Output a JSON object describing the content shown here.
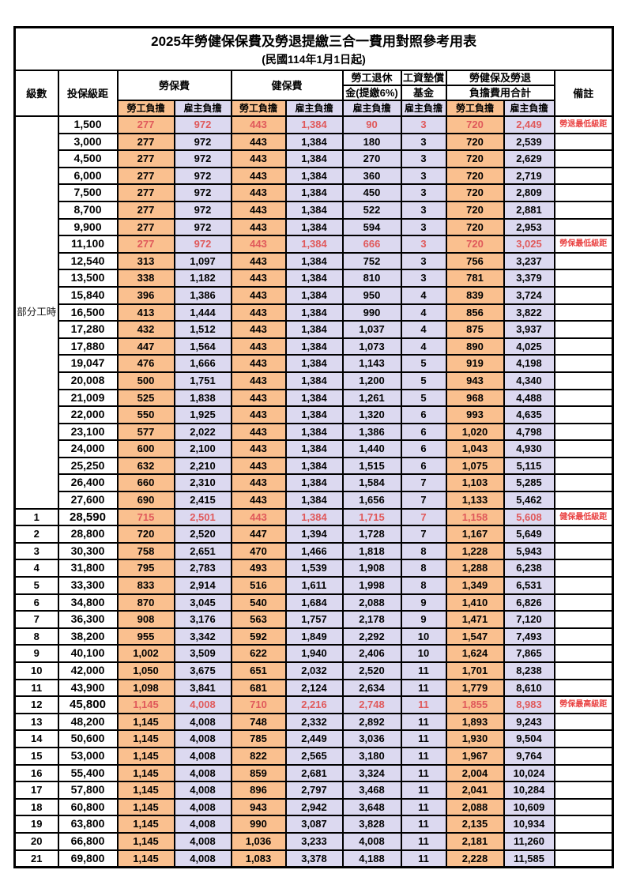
{
  "title": "2025年勞健保保費及勞退提繳三合一費用對照參考用表",
  "subtitle": "(民國114年1月1日起)",
  "colors": {
    "worker_bg": "#fac08f",
    "employer_bg": "#dcd9f0",
    "highlight_red": "#e0595b",
    "remark_red": "#ea4444",
    "border": "#000000"
  },
  "header": {
    "level": "級數",
    "bracket": "投保級距",
    "labor_insurance": "勞保費",
    "health_insurance": "健保費",
    "pension_line1": "勞工退休",
    "pension_line2": "金(提繳6%)",
    "wage_fund_line1": "工資墊償",
    "wage_fund_line2": "基金",
    "total_line1": "勞健保及勞退",
    "total_line2": "負擔費用合計",
    "remark": "備註",
    "worker_burden": "勞工負擔",
    "employer_burden": "雇主負擔"
  },
  "part_time_label": "部分工時",
  "part_time_rowspan": 23,
  "rows": [
    {
      "level": "",
      "bracket": "1,500",
      "values": [
        "277",
        "972",
        "443",
        "1,384",
        "90",
        "3",
        "720",
        "2,449"
      ],
      "remark": "勞退最低級距",
      "red": true,
      "bold": false
    },
    {
      "level": "",
      "bracket": "3,000",
      "values": [
        "277",
        "972",
        "443",
        "1,384",
        "180",
        "3",
        "720",
        "2,539"
      ],
      "remark": "",
      "red": false,
      "bold": false
    },
    {
      "level": "",
      "bracket": "4,500",
      "values": [
        "277",
        "972",
        "443",
        "1,384",
        "270",
        "3",
        "720",
        "2,629"
      ],
      "remark": "",
      "red": false,
      "bold": false
    },
    {
      "level": "",
      "bracket": "6,000",
      "values": [
        "277",
        "972",
        "443",
        "1,384",
        "360",
        "3",
        "720",
        "2,719"
      ],
      "remark": "",
      "red": false,
      "bold": false
    },
    {
      "level": "",
      "bracket": "7,500",
      "values": [
        "277",
        "972",
        "443",
        "1,384",
        "450",
        "3",
        "720",
        "2,809"
      ],
      "remark": "",
      "red": false,
      "bold": false
    },
    {
      "level": "",
      "bracket": "8,700",
      "values": [
        "277",
        "972",
        "443",
        "1,384",
        "522",
        "3",
        "720",
        "2,881"
      ],
      "remark": "",
      "red": false,
      "bold": false
    },
    {
      "level": "",
      "bracket": "9,900",
      "values": [
        "277",
        "972",
        "443",
        "1,384",
        "594",
        "3",
        "720",
        "2,953"
      ],
      "remark": "",
      "red": false,
      "bold": false
    },
    {
      "level": "",
      "bracket": "11,100",
      "values": [
        "277",
        "972",
        "443",
        "1,384",
        "666",
        "3",
        "720",
        "3,025"
      ],
      "remark": "勞保最低級距",
      "red": true,
      "bold": false
    },
    {
      "level": "",
      "bracket": "12,540",
      "values": [
        "313",
        "1,097",
        "443",
        "1,384",
        "752",
        "3",
        "756",
        "3,237"
      ],
      "remark": "",
      "red": false,
      "bold": false
    },
    {
      "level": "",
      "bracket": "13,500",
      "values": [
        "338",
        "1,182",
        "443",
        "1,384",
        "810",
        "3",
        "781",
        "3,379"
      ],
      "remark": "",
      "red": false,
      "bold": false
    },
    {
      "level": "",
      "bracket": "15,840",
      "values": [
        "396",
        "1,386",
        "443",
        "1,384",
        "950",
        "4",
        "839",
        "3,724"
      ],
      "remark": "",
      "red": false,
      "bold": false
    },
    {
      "level": "",
      "bracket": "16,500",
      "values": [
        "413",
        "1,444",
        "443",
        "1,384",
        "990",
        "4",
        "856",
        "3,822"
      ],
      "remark": "",
      "red": false,
      "bold": false
    },
    {
      "level": "",
      "bracket": "17,280",
      "values": [
        "432",
        "1,512",
        "443",
        "1,384",
        "1,037",
        "4",
        "875",
        "3,937"
      ],
      "remark": "",
      "red": false,
      "bold": false
    },
    {
      "level": "",
      "bracket": "17,880",
      "values": [
        "447",
        "1,564",
        "443",
        "1,384",
        "1,073",
        "4",
        "890",
        "4,025"
      ],
      "remark": "",
      "red": false,
      "bold": false
    },
    {
      "level": "",
      "bracket": "19,047",
      "values": [
        "476",
        "1,666",
        "443",
        "1,384",
        "1,143",
        "5",
        "919",
        "4,198"
      ],
      "remark": "",
      "red": false,
      "bold": false
    },
    {
      "level": "",
      "bracket": "20,008",
      "values": [
        "500",
        "1,751",
        "443",
        "1,384",
        "1,200",
        "5",
        "943",
        "4,340"
      ],
      "remark": "",
      "red": false,
      "bold": false
    },
    {
      "level": "",
      "bracket": "21,009",
      "values": [
        "525",
        "1,838",
        "443",
        "1,384",
        "1,261",
        "5",
        "968",
        "4,488"
      ],
      "remark": "",
      "red": false,
      "bold": false
    },
    {
      "level": "",
      "bracket": "22,000",
      "values": [
        "550",
        "1,925",
        "443",
        "1,384",
        "1,320",
        "6",
        "993",
        "4,635"
      ],
      "remark": "",
      "red": false,
      "bold": false
    },
    {
      "level": "",
      "bracket": "23,100",
      "values": [
        "577",
        "2,022",
        "443",
        "1,384",
        "1,386",
        "6",
        "1,020",
        "4,798"
      ],
      "remark": "",
      "red": false,
      "bold": false
    },
    {
      "level": "",
      "bracket": "24,000",
      "values": [
        "600",
        "2,100",
        "443",
        "1,384",
        "1,440",
        "6",
        "1,043",
        "4,930"
      ],
      "remark": "",
      "red": false,
      "bold": false
    },
    {
      "level": "",
      "bracket": "25,250",
      "values": [
        "632",
        "2,210",
        "443",
        "1,384",
        "1,515",
        "6",
        "1,075",
        "5,115"
      ],
      "remark": "",
      "red": false,
      "bold": false
    },
    {
      "level": "",
      "bracket": "26,400",
      "values": [
        "660",
        "2,310",
        "443",
        "1,384",
        "1,584",
        "7",
        "1,103",
        "5,285"
      ],
      "remark": "",
      "red": false,
      "bold": false
    },
    {
      "level": "",
      "bracket": "27,600",
      "values": [
        "690",
        "2,415",
        "443",
        "1,384",
        "1,656",
        "7",
        "1,133",
        "5,462"
      ],
      "remark": "",
      "red": false,
      "bold": false
    },
    {
      "level": "1",
      "bracket": "28,590",
      "values": [
        "715",
        "2,501",
        "443",
        "1,384",
        "1,715",
        "7",
        "1,158",
        "5,608"
      ],
      "remark": "健保最低級距",
      "red": true,
      "bold": true
    },
    {
      "level": "2",
      "bracket": "28,800",
      "values": [
        "720",
        "2,520",
        "447",
        "1,394",
        "1,728",
        "7",
        "1,167",
        "5,649"
      ],
      "remark": "",
      "red": false,
      "bold": false
    },
    {
      "level": "3",
      "bracket": "30,300",
      "values": [
        "758",
        "2,651",
        "470",
        "1,466",
        "1,818",
        "8",
        "1,228",
        "5,943"
      ],
      "remark": "",
      "red": false,
      "bold": false
    },
    {
      "level": "4",
      "bracket": "31,800",
      "values": [
        "795",
        "2,783",
        "493",
        "1,539",
        "1,908",
        "8",
        "1,288",
        "6,238"
      ],
      "remark": "",
      "red": false,
      "bold": false
    },
    {
      "level": "5",
      "bracket": "33,300",
      "values": [
        "833",
        "2,914",
        "516",
        "1,611",
        "1,998",
        "8",
        "1,349",
        "6,531"
      ],
      "remark": "",
      "red": false,
      "bold": false
    },
    {
      "level": "6",
      "bracket": "34,800",
      "values": [
        "870",
        "3,045",
        "540",
        "1,684",
        "2,088",
        "9",
        "1,410",
        "6,826"
      ],
      "remark": "",
      "red": false,
      "bold": false
    },
    {
      "level": "7",
      "bracket": "36,300",
      "values": [
        "908",
        "3,176",
        "563",
        "1,757",
        "2,178",
        "9",
        "1,471",
        "7,120"
      ],
      "remark": "",
      "red": false,
      "bold": false
    },
    {
      "level": "8",
      "bracket": "38,200",
      "values": [
        "955",
        "3,342",
        "592",
        "1,849",
        "2,292",
        "10",
        "1,547",
        "7,493"
      ],
      "remark": "",
      "red": false,
      "bold": false
    },
    {
      "level": "9",
      "bracket": "40,100",
      "values": [
        "1,002",
        "3,509",
        "622",
        "1,940",
        "2,406",
        "10",
        "1,624",
        "7,865"
      ],
      "remark": "",
      "red": false,
      "bold": false
    },
    {
      "level": "10",
      "bracket": "42,000",
      "values": [
        "1,050",
        "3,675",
        "651",
        "2,032",
        "2,520",
        "11",
        "1,701",
        "8,238"
      ],
      "remark": "",
      "red": false,
      "bold": false
    },
    {
      "level": "11",
      "bracket": "43,900",
      "values": [
        "1,098",
        "3,841",
        "681",
        "2,124",
        "2,634",
        "11",
        "1,779",
        "8,610"
      ],
      "remark": "",
      "red": false,
      "bold": false
    },
    {
      "level": "12",
      "bracket": "45,800",
      "values": [
        "1,145",
        "4,008",
        "710",
        "2,216",
        "2,748",
        "11",
        "1,855",
        "8,983"
      ],
      "remark": "勞保最高級距",
      "red": true,
      "bold": true
    },
    {
      "level": "13",
      "bracket": "48,200",
      "values": [
        "1,145",
        "4,008",
        "748",
        "2,332",
        "2,892",
        "11",
        "1,893",
        "9,243"
      ],
      "remark": "",
      "red": false,
      "bold": false
    },
    {
      "level": "14",
      "bracket": "50,600",
      "values": [
        "1,145",
        "4,008",
        "785",
        "2,449",
        "3,036",
        "11",
        "1,930",
        "9,504"
      ],
      "remark": "",
      "red": false,
      "bold": false
    },
    {
      "level": "15",
      "bracket": "53,000",
      "values": [
        "1,145",
        "4,008",
        "822",
        "2,565",
        "3,180",
        "11",
        "1,967",
        "9,764"
      ],
      "remark": "",
      "red": false,
      "bold": false
    },
    {
      "level": "16",
      "bracket": "55,400",
      "values": [
        "1,145",
        "4,008",
        "859",
        "2,681",
        "3,324",
        "11",
        "2,004",
        "10,024"
      ],
      "remark": "",
      "red": false,
      "bold": false
    },
    {
      "level": "17",
      "bracket": "57,800",
      "values": [
        "1,145",
        "4,008",
        "896",
        "2,797",
        "3,468",
        "11",
        "2,041",
        "10,284"
      ],
      "remark": "",
      "red": false,
      "bold": false
    },
    {
      "level": "18",
      "bracket": "60,800",
      "values": [
        "1,145",
        "4,008",
        "943",
        "2,942",
        "3,648",
        "11",
        "2,088",
        "10,609"
      ],
      "remark": "",
      "red": false,
      "bold": false
    },
    {
      "level": "19",
      "bracket": "63,800",
      "values": [
        "1,145",
        "4,008",
        "990",
        "3,087",
        "3,828",
        "11",
        "2,135",
        "10,934"
      ],
      "remark": "",
      "red": false,
      "bold": false
    },
    {
      "level": "20",
      "bracket": "66,800",
      "values": [
        "1,145",
        "4,008",
        "1,036",
        "3,233",
        "4,008",
        "11",
        "2,181",
        "11,260"
      ],
      "remark": "",
      "red": false,
      "bold": false
    },
    {
      "level": "21",
      "bracket": "69,800",
      "values": [
        "1,145",
        "4,008",
        "1,083",
        "3,378",
        "4,188",
        "11",
        "2,228",
        "11,585"
      ],
      "remark": "",
      "red": false,
      "bold": false
    }
  ]
}
